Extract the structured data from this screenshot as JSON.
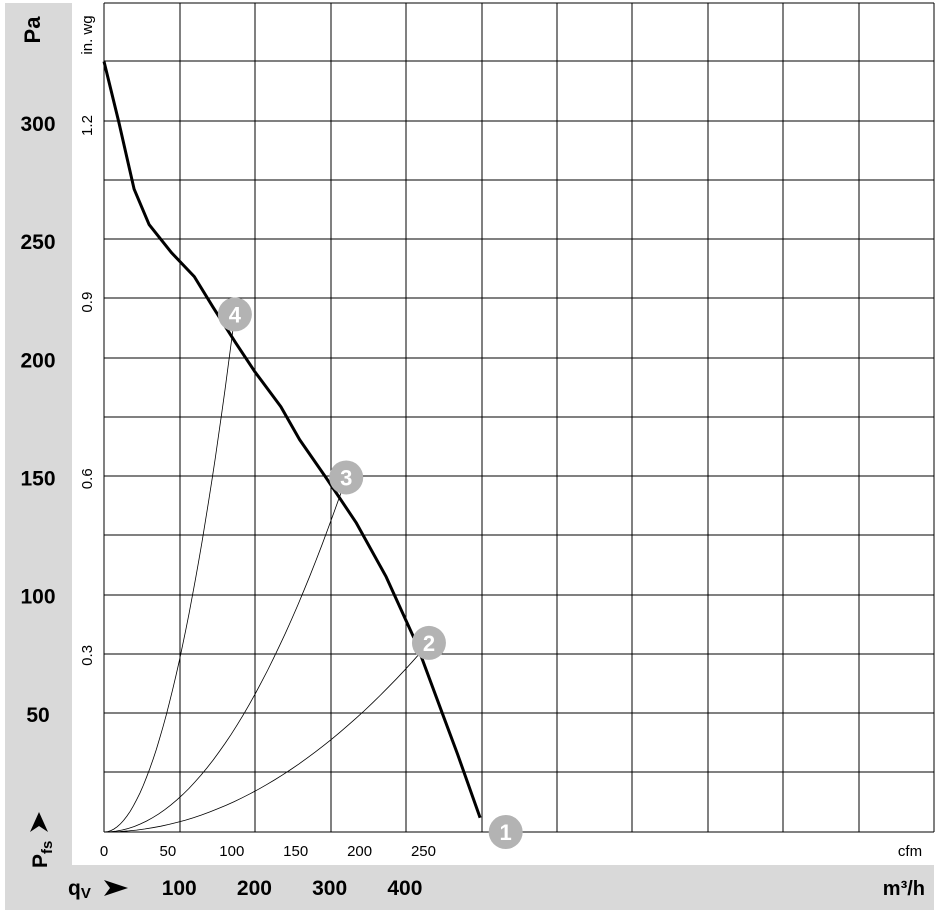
{
  "colors": {
    "band": "#d9d9d9",
    "grid": "#000000",
    "curve": "#000000",
    "marker_fill": "#b3b3b3",
    "marker_text": "#ffffff",
    "background": "#ffffff"
  },
  "labels": {
    "left_unit": "Pa",
    "left_secondary_unit": "in. wg",
    "left_axis_arrow_label": "P",
    "left_axis_arrow_sub": "fs",
    "bottom_axis_arrow_label": "q",
    "bottom_axis_arrow_sub": "V",
    "bottom_unit": "m³/h",
    "inner_bottom_unit": "cfm"
  },
  "chart_data": {
    "type": "line",
    "title": "",
    "xlabel": "qV (m³/h)",
    "ylabel": "Pfs (Pa)",
    "xlim_m3h": [
      0,
      470
    ],
    "ylim_pa": [
      0,
      325
    ],
    "grid": true,
    "ticks": {
      "pa": [
        50,
        100,
        150,
        200,
        250,
        300
      ],
      "inwg": [
        "0.3",
        "0.6",
        "0.9",
        "1.2"
      ],
      "m3h": [
        100,
        200,
        300,
        400
      ],
      "cfm": [
        0,
        50,
        100,
        150,
        200,
        250
      ]
    },
    "series": [
      {
        "points": [
          {
            "x": 0,
            "y": 326
          },
          {
            "x": 20,
            "y": 300
          },
          {
            "x": 40,
            "y": 272
          },
          {
            "x": 60,
            "y": 257
          },
          {
            "x": 90,
            "y": 245
          },
          {
            "x": 120,
            "y": 235
          },
          {
            "x": 145,
            "y": 222
          },
          {
            "x": 175,
            "y": 207
          },
          {
            "x": 200,
            "y": 195
          },
          {
            "x": 235,
            "y": 180
          },
          {
            "x": 260,
            "y": 166
          },
          {
            "x": 295,
            "y": 150
          },
          {
            "x": 335,
            "y": 131
          },
          {
            "x": 375,
            "y": 108
          },
          {
            "x": 415,
            "y": 80
          },
          {
            "x": 450,
            "y": 50
          },
          {
            "x": 470,
            "y": 33
          },
          {
            "x": 500,
            "y": 6
          }
        ]
      }
    ],
    "system_curves": [
      {
        "label": "4",
        "x": 174,
        "y": 219
      },
      {
        "label": "3",
        "x": 322,
        "y": 150
      },
      {
        "label": "2",
        "x": 432,
        "y": 80
      },
      {
        "label": "1",
        "x": 534,
        "y": 0
      }
    ]
  }
}
